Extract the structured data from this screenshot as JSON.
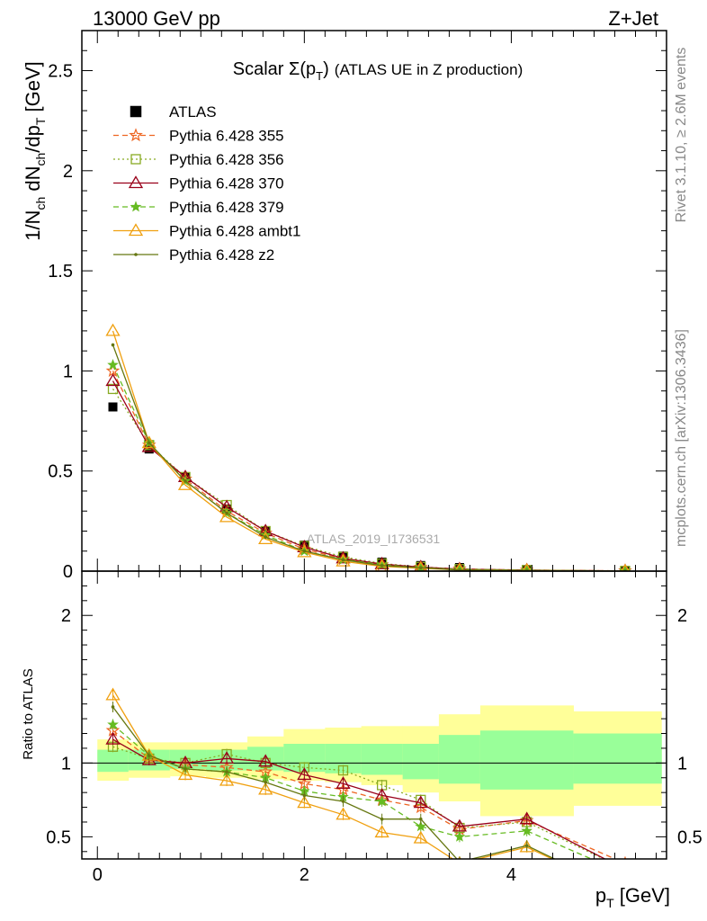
{
  "header": {
    "left": "13000 GeV pp",
    "right": "Z+Jet"
  },
  "title_main": "Scalar Σ(p",
  "title_sub": "T",
  "title_close": ")",
  "title_rest": "(ATLAS UE in Z production)",
  "side_text_top": "Rivet 3.1.10, ≥ 2.6M events",
  "side_text_bottom": "mcplots.cern.ch [arXiv:1306.3436]",
  "watermark": "ATLAS_2019_I1736531",
  "colors": {
    "data": "#000000",
    "p355": "#ee6622",
    "p356": "#88aa22",
    "p370": "#99001a",
    "p379": "#66bb22",
    "ambt1": "#f0a010",
    "z2": "#667711",
    "band_outer": "#ffff99",
    "band_inner": "#99ff99"
  },
  "chart_data": [
    {
      "type": "line",
      "panel": "main",
      "title": "Scalar Σ(pT) (ATLAS UE in Z production)",
      "ylabel": "1/N_ch dN_ch/dp_T [GeV]",
      "xlabel": "p_T [GeV]",
      "xlim": [
        -0.15,
        5.5
      ],
      "ylim": [
        0,
        2.7
      ],
      "yticks": [
        "0",
        "0.5",
        "1",
        "1.5",
        "2",
        "2.5"
      ],
      "x": [
        0.15,
        0.5,
        0.85,
        1.25,
        1.625,
        2.0,
        2.375,
        2.75,
        3.125,
        3.5,
        4.15,
        5.1
      ],
      "legend_position": "top-left",
      "series": [
        {
          "name": "ATLAS",
          "style": "data",
          "values": [
            0.82,
            0.61,
            0.47,
            0.31,
            0.2,
            0.13,
            0.075,
            0.045,
            0.028,
            0.018,
            0.008,
            0.003
          ]
        },
        {
          "name": "Pythia 6.428 355",
          "style": "p355",
          "values": [
            1.0,
            0.63,
            0.46,
            0.3,
            0.19,
            0.11,
            0.06,
            0.032,
            0.019,
            0.011,
            0.005,
            0.0012
          ]
        },
        {
          "name": "Pythia 6.428 356",
          "style": "p356",
          "values": [
            0.91,
            0.63,
            0.47,
            0.33,
            0.2,
            0.125,
            0.071,
            0.038,
            0.021,
            0.01,
            0.005,
            0.0009
          ]
        },
        {
          "name": "Pythia 6.428 370",
          "style": "p370",
          "values": [
            0.95,
            0.62,
            0.47,
            0.32,
            0.2,
            0.12,
            0.064,
            0.035,
            0.02,
            0.01,
            0.005,
            0.0009
          ]
        },
        {
          "name": "Pythia 6.428 379",
          "style": "p379",
          "values": [
            1.03,
            0.64,
            0.45,
            0.29,
            0.18,
            0.1,
            0.058,
            0.033,
            0.016,
            0.009,
            0.0043,
            0.0008
          ]
        },
        {
          "name": "Pythia 6.428 ambt1",
          "style": "ambt1",
          "values": [
            1.2,
            0.64,
            0.43,
            0.27,
            0.16,
            0.095,
            0.049,
            0.024,
            0.014,
            0.006,
            0.0035,
            0.0004
          ]
        },
        {
          "name": "Pythia 6.428 z2",
          "style": "z2",
          "values": [
            1.13,
            0.64,
            0.45,
            0.29,
            0.17,
            0.1,
            0.056,
            0.028,
            0.017,
            0.006,
            0.0036,
            0.0004
          ]
        }
      ]
    },
    {
      "type": "line",
      "panel": "ratio",
      "ylabel": "Ratio to ATLAS",
      "xlabel": "p_T [GeV]",
      "xlim": [
        -0.15,
        5.5
      ],
      "ylim": [
        0.35,
        2.3
      ],
      "xticks": [
        "0",
        "2",
        "4"
      ],
      "yticks": [
        "0.5",
        "1",
        "2"
      ],
      "x": [
        0.15,
        0.5,
        0.85,
        1.25,
        1.625,
        2.0,
        2.375,
        2.75,
        3.125,
        3.5,
        4.15,
        5.1
      ],
      "bands": {
        "edges": [
          0.0,
          0.3,
          0.7,
          1.05,
          1.45,
          1.8,
          2.2,
          2.55,
          2.95,
          3.3,
          3.7,
          4.6,
          5.45
        ],
        "outer": [
          [
            0.88,
            1.16
          ],
          [
            0.9,
            1.14
          ],
          [
            0.91,
            1.14
          ],
          [
            0.9,
            1.14
          ],
          [
            0.89,
            1.18
          ],
          [
            0.88,
            1.23
          ],
          [
            0.87,
            1.24
          ],
          [
            0.85,
            1.25
          ],
          [
            0.8,
            1.25
          ],
          [
            0.74,
            1.33
          ],
          [
            0.64,
            1.39
          ],
          [
            0.71,
            1.35
          ]
        ],
        "inner": [
          [
            0.94,
            1.09
          ],
          [
            0.95,
            1.09
          ],
          [
            0.96,
            1.09
          ],
          [
            0.95,
            1.09
          ],
          [
            0.95,
            1.11
          ],
          [
            0.94,
            1.13
          ],
          [
            0.93,
            1.13
          ],
          [
            0.92,
            1.13
          ],
          [
            0.89,
            1.13
          ],
          [
            0.86,
            1.19
          ],
          [
            0.82,
            1.22
          ],
          [
            0.86,
            1.2
          ]
        ]
      },
      "series": [
        {
          "name": "Pythia 6.428 355",
          "style": "p355",
          "values": [
            1.22,
            1.03,
            0.99,
            0.97,
            0.94,
            0.86,
            0.82,
            0.75,
            0.7,
            0.55,
            0.61,
            0.32
          ]
        },
        {
          "name": "Pythia 6.428 356",
          "style": "p356",
          "values": [
            1.11,
            1.03,
            1.0,
            1.06,
            1.0,
            0.97,
            0.95,
            0.85,
            0.75,
            0.56,
            0.6,
            0.28
          ]
        },
        {
          "name": "Pythia 6.428 370",
          "style": "p370",
          "values": [
            1.16,
            1.02,
            1.0,
            1.03,
            1.01,
            0.92,
            0.86,
            0.78,
            0.73,
            0.57,
            0.62,
            0.28
          ]
        },
        {
          "name": "Pythia 6.428 379",
          "style": "p379",
          "values": [
            1.26,
            1.05,
            0.96,
            0.94,
            0.9,
            0.81,
            0.77,
            0.74,
            0.57,
            0.5,
            0.54,
            0.25
          ]
        },
        {
          "name": "Pythia 6.428 ambt1",
          "style": "ambt1",
          "values": [
            1.46,
            1.05,
            0.92,
            0.88,
            0.82,
            0.73,
            0.65,
            0.53,
            0.49,
            0.32,
            0.43,
            0.12
          ]
        },
        {
          "name": "Pythia 6.428 z2",
          "style": "z2",
          "values": [
            1.38,
            1.05,
            0.96,
            0.94,
            0.87,
            0.78,
            0.74,
            0.62,
            0.62,
            0.33,
            0.44,
            0.12
          ]
        }
      ]
    }
  ]
}
